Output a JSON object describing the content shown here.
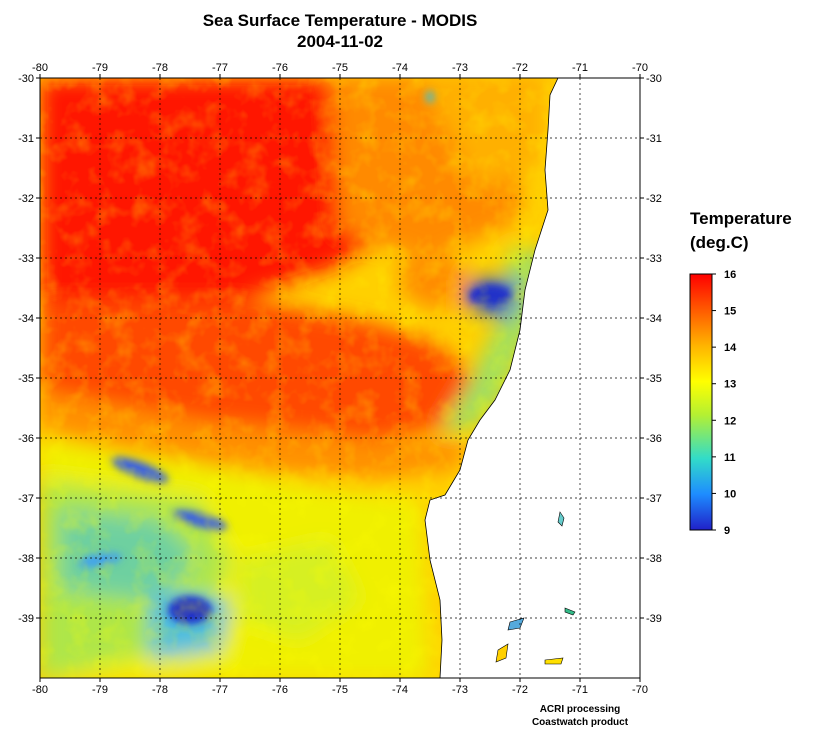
{
  "title": "Sea Surface Temperature - MODIS",
  "date": "2004-11-02",
  "map": {
    "lon_range": [
      -80,
      -70
    ],
    "lat_range": [
      -40,
      -30
    ],
    "lon_ticks": [
      "-80",
      "-79",
      "-78",
      "-77",
      "-76",
      "-75",
      "-74",
      "-73",
      "-72",
      "-71",
      "-70"
    ],
    "lat_ticks": [
      "-30",
      "-31",
      "-32",
      "-33",
      "-34",
      "-35",
      "-36",
      "-37",
      "-38",
      "-39"
    ],
    "grid": true,
    "grid_style": "dotted",
    "land_color": "#ffffff",
    "coast_color": "#000000"
  },
  "legend": {
    "title_line1": "Temperature",
    "title_line2": "(deg.C)",
    "min": 9,
    "max": 16,
    "labels": [
      "16",
      "15",
      "14",
      "13",
      "12",
      "11",
      "10",
      "9"
    ],
    "colors": [
      "#2020c8",
      "#1e8cff",
      "#32dcc8",
      "#b4f032",
      "#ffff00",
      "#ffb400",
      "#ff5a00",
      "#ff0000"
    ]
  },
  "credit": {
    "line1": "ACRI processing",
    "line2": "Coastwatch product"
  }
}
